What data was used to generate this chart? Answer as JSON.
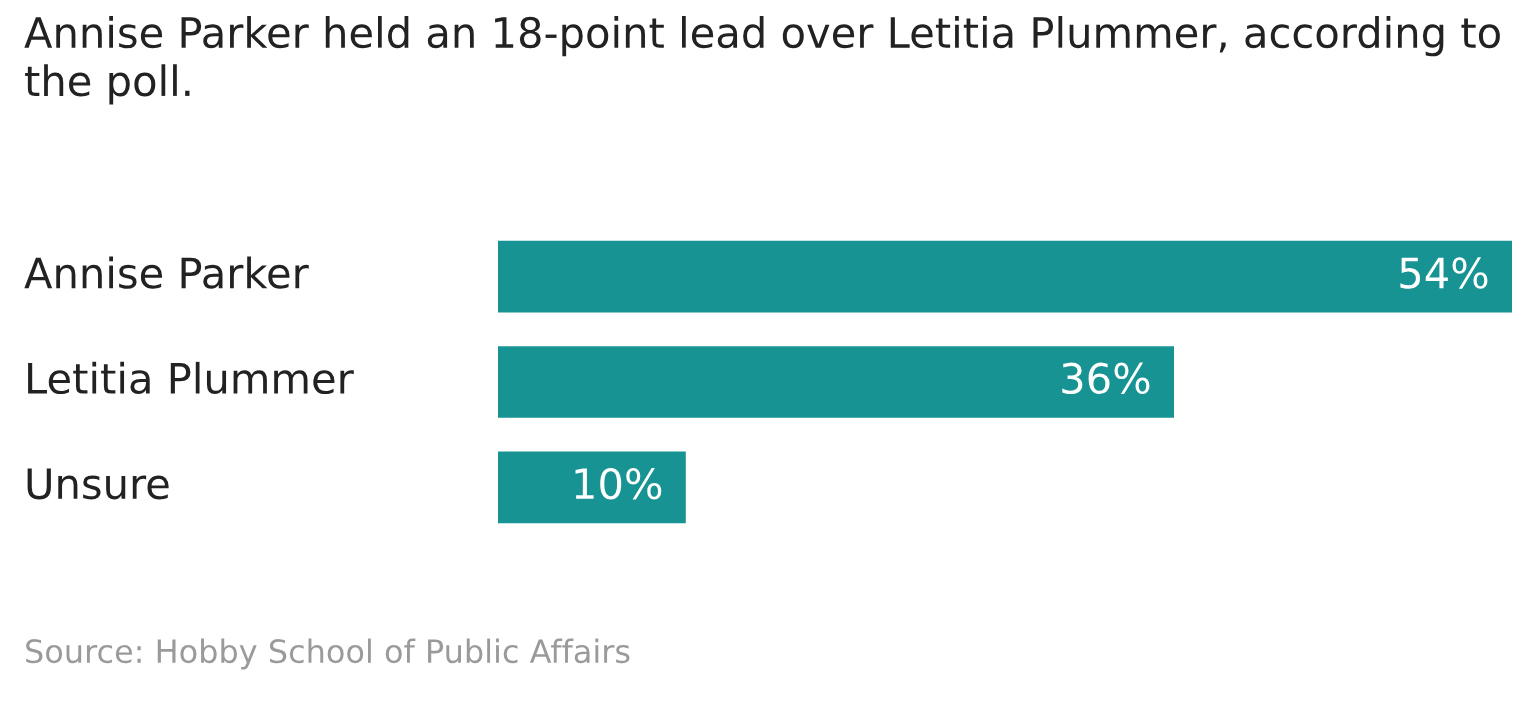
{
  "chart_data": {
    "type": "bar",
    "orientation": "horizontal",
    "title": "Annise Parker held an 18-point lead over Letitia Plummer, according to the poll.",
    "categories": [
      "Annise Parker",
      "Letitia Plummer",
      "Unsure"
    ],
    "values": [
      54,
      36,
      10
    ],
    "color": "#189394",
    "value_labels": [
      "54%",
      "36%",
      "10%"
    ],
    "annotations": [
      "Source: Hobby School of Public Affairs"
    ]
  }
}
